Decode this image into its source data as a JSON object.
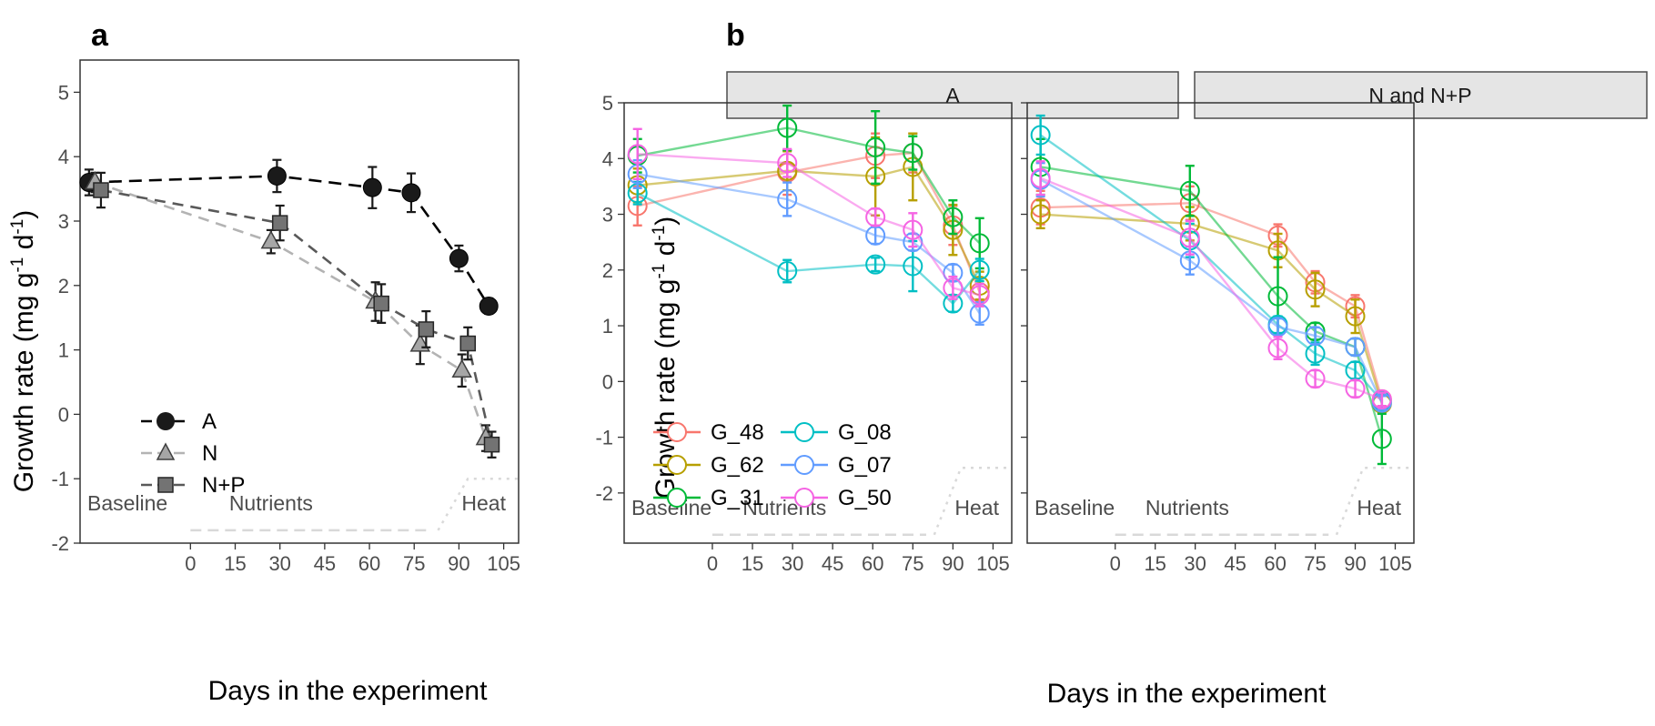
{
  "colors": {
    "series_a": "#000000",
    "series_n": "#a6a6a6",
    "series_np": "#666666",
    "G_48": "#F8766D",
    "G_62": "#B79F00",
    "G_31": "#00BA38",
    "G_08": "#00BFC4",
    "G_07": "#619CFF",
    "G_50": "#F564E3",
    "strip_bg": "#e5e5e5"
  },
  "chart_data": [
    {
      "panel": "a",
      "type": "line",
      "xlabel": "Days in the experiment",
      "ylabel": "Growth rate (mg g-1 d-1)",
      "xticks": [
        0,
        15,
        30,
        45,
        60,
        75,
        90,
        105
      ],
      "yticks": [
        -2,
        -1,
        0,
        1,
        2,
        3,
        4,
        5
      ],
      "ylim": [
        -2,
        5.5
      ],
      "phases": [
        "Baseline",
        "Nutrients",
        "Heat"
      ],
      "legend": {
        "position": "bottom-left"
      },
      "series": [
        {
          "name": "A",
          "marker": "circle",
          "line": "dashed",
          "points": [
            {
              "x": -34,
              "y": 3.6,
              "err": 0.2
            },
            {
              "x": 29,
              "y": 3.7,
              "err": 0.25
            },
            {
              "x": 61,
              "y": 3.52,
              "err": 0.32
            },
            {
              "x": 74,
              "y": 3.44,
              "err": 0.3
            },
            {
              "x": 90,
              "y": 2.42,
              "err": 0.2
            },
            {
              "x": 100,
              "y": 1.68,
              "err": 0.12
            }
          ]
        },
        {
          "name": "N",
          "marker": "triangle",
          "line": "dashed",
          "points": [
            {
              "x": -32,
              "y": 3.6,
              "err": 0.15
            },
            {
              "x": 27,
              "y": 2.68,
              "err": 0.18
            },
            {
              "x": 62,
              "y": 1.75,
              "err": 0.3
            },
            {
              "x": 77,
              "y": 1.08,
              "err": 0.3
            },
            {
              "x": 91,
              "y": 0.68,
              "err": 0.25
            },
            {
              "x": 99,
              "y": -0.37,
              "err": 0.2
            }
          ]
        },
        {
          "name": "N+P",
          "marker": "square",
          "line": "dashed",
          "points": [
            {
              "x": -30,
              "y": 3.48,
              "err": 0.27
            },
            {
              "x": 30,
              "y": 2.97,
              "err": 0.27
            },
            {
              "x": 64,
              "y": 1.72,
              "err": 0.3
            },
            {
              "x": 79,
              "y": 1.32,
              "err": 0.28
            },
            {
              "x": 93,
              "y": 1.1,
              "err": 0.25
            },
            {
              "x": 101,
              "y": -0.47,
              "err": 0.2
            }
          ]
        }
      ]
    },
    {
      "panel": "b",
      "facet": "A",
      "type": "line",
      "xlabel": "Days in the experiment",
      "ylabel": "Growth rate (mg g-1 d-1)",
      "xticks": [
        0,
        15,
        30,
        45,
        60,
        75,
        90,
        105
      ],
      "yticks": [
        -2,
        -1,
        0,
        1,
        2,
        3,
        4,
        5
      ],
      "ylim": [
        -2.9,
        5
      ],
      "phases": [
        "Baseline",
        "Nutrients",
        "Heat"
      ],
      "legend": {
        "position": "bottom-left"
      },
      "series": [
        {
          "name": "G_48",
          "points": [
            {
              "x": -28,
              "y": 3.15,
              "err": 0.35
            },
            {
              "x": 28,
              "y": 3.75,
              "err": 0.4
            },
            {
              "x": 61,
              "y": 4.05,
              "err": 0.4
            },
            {
              "x": 75,
              "y": 4.1,
              "err": 0.35
            },
            {
              "x": 90,
              "y": 2.8,
              "err": 0.35
            },
            {
              "x": 100,
              "y": 1.6,
              "err": 0.25
            }
          ]
        },
        {
          "name": "G_62",
          "points": [
            {
              "x": -28,
              "y": 3.52,
              "err": 0.3
            },
            {
              "x": 28,
              "y": 3.78,
              "err": 0.35
            },
            {
              "x": 61,
              "y": 3.68,
              "err": 0.7
            },
            {
              "x": 75,
              "y": 3.85,
              "err": 0.6
            },
            {
              "x": 90,
              "y": 2.72,
              "err": 0.45
            },
            {
              "x": 100,
              "y": 1.72,
              "err": 0.25
            }
          ]
        },
        {
          "name": "G_31",
          "points": [
            {
              "x": -28,
              "y": 4.05,
              "err": 0.3
            },
            {
              "x": 28,
              "y": 4.55,
              "err": 0.4
            },
            {
              "x": 61,
              "y": 4.2,
              "err": 0.65
            },
            {
              "x": 75,
              "y": 4.1,
              "err": 0.3
            },
            {
              "x": 90,
              "y": 2.95,
              "err": 0.3
            },
            {
              "x": 100,
              "y": 2.48,
              "err": 0.45
            }
          ]
        },
        {
          "name": "G_08",
          "points": [
            {
              "x": -28,
              "y": 3.38,
              "err": 0.2
            },
            {
              "x": 28,
              "y": 1.98,
              "err": 0.2
            },
            {
              "x": 61,
              "y": 2.1,
              "err": 0.12
            },
            {
              "x": 75,
              "y": 2.07,
              "err": 0.45
            },
            {
              "x": 90,
              "y": 1.4,
              "err": 0.15
            },
            {
              "x": 100,
              "y": 2.0,
              "err": 0.2
            }
          ]
        },
        {
          "name": "G_07",
          "points": [
            {
              "x": -28,
              "y": 3.72,
              "err": 0.25
            },
            {
              "x": 28,
              "y": 3.27,
              "err": 0.3
            },
            {
              "x": 61,
              "y": 2.62,
              "err": 0.15
            },
            {
              "x": 75,
              "y": 2.5,
              "err": 0.15
            },
            {
              "x": 90,
              "y": 1.95,
              "err": 0.15
            },
            {
              "x": 100,
              "y": 1.22,
              "err": 0.2
            }
          ]
        },
        {
          "name": "G_50",
          "points": [
            {
              "x": -28,
              "y": 4.08,
              "err": 0.45
            },
            {
              "x": 28,
              "y": 3.92,
              "err": 0.25
            },
            {
              "x": 61,
              "y": 2.95,
              "err": 0.15
            },
            {
              "x": 75,
              "y": 2.72,
              "err": 0.3
            },
            {
              "x": 90,
              "y": 1.68,
              "err": 0.2
            },
            {
              "x": 100,
              "y": 1.55,
              "err": 0.2
            }
          ]
        }
      ]
    },
    {
      "panel": "b",
      "facet": "N and N+P",
      "type": "line",
      "xlabel": "Days in the experiment",
      "xticks": [
        0,
        15,
        30,
        45,
        60,
        75,
        90,
        105
      ],
      "yticks": [
        -2,
        -1,
        0,
        1,
        2,
        3,
        4,
        5
      ],
      "ylim": [
        -2.9,
        5
      ],
      "phases": [
        "Baseline",
        "Nutrients",
        "Heat"
      ],
      "series": [
        {
          "name": "G_48",
          "points": [
            {
              "x": -28,
              "y": 3.12,
              "err": 0.3
            },
            {
              "x": 28,
              "y": 3.2,
              "err": 0.3
            },
            {
              "x": 61,
              "y": 2.62,
              "err": 0.2
            },
            {
              "x": 75,
              "y": 1.78,
              "err": 0.2
            },
            {
              "x": 90,
              "y": 1.35,
              "err": 0.2
            },
            {
              "x": 100,
              "y": -0.32,
              "err": 0.12
            }
          ]
        },
        {
          "name": "G_62",
          "points": [
            {
              "x": -28,
              "y": 3.0,
              "err": 0.25
            },
            {
              "x": 28,
              "y": 2.83,
              "err": 0.3
            },
            {
              "x": 61,
              "y": 2.35,
              "err": 0.3
            },
            {
              "x": 75,
              "y": 1.65,
              "err": 0.3
            },
            {
              "x": 90,
              "y": 1.17,
              "err": 0.3
            },
            {
              "x": 100,
              "y": -0.4,
              "err": 0.15
            }
          ]
        },
        {
          "name": "G_31",
          "points": [
            {
              "x": -28,
              "y": 3.85,
              "err": 0.5
            },
            {
              "x": 28,
              "y": 3.42,
              "err": 0.45
            },
            {
              "x": 61,
              "y": 1.53,
              "err": 0.7
            },
            {
              "x": 75,
              "y": 0.9,
              "err": 0.15
            },
            {
              "x": 90,
              "y": 0.62,
              "err": 0.15
            },
            {
              "x": 100,
              "y": -1.03,
              "err": 0.45
            }
          ]
        },
        {
          "name": "G_08",
          "points": [
            {
              "x": -28,
              "y": 4.42,
              "err": 0.35
            },
            {
              "x": 28,
              "y": 2.53,
              "err": 0.3
            },
            {
              "x": 61,
              "y": 1.02,
              "err": 0.15
            },
            {
              "x": 75,
              "y": 0.5,
              "err": 0.2
            },
            {
              "x": 90,
              "y": 0.2,
              "err": 0.15
            },
            {
              "x": 100,
              "y": -0.35,
              "err": 0.15
            }
          ]
        },
        {
          "name": "G_07",
          "points": [
            {
              "x": -28,
              "y": 3.62,
              "err": 0.3
            },
            {
              "x": 28,
              "y": 2.17,
              "err": 0.25
            },
            {
              "x": 61,
              "y": 0.98,
              "err": 0.15
            },
            {
              "x": 75,
              "y": 0.82,
              "err": 0.15
            },
            {
              "x": 90,
              "y": 0.62,
              "err": 0.15
            },
            {
              "x": 100,
              "y": -0.38,
              "err": 0.12
            }
          ]
        },
        {
          "name": "G_50",
          "points": [
            {
              "x": -28,
              "y": 3.65,
              "err": 0.3
            },
            {
              "x": 28,
              "y": 2.58,
              "err": 0.3
            },
            {
              "x": 61,
              "y": 0.6,
              "err": 0.2
            },
            {
              "x": 75,
              "y": 0.05,
              "err": 0.15
            },
            {
              "x": 90,
              "y": -0.13,
              "err": 0.15
            },
            {
              "x": 100,
              "y": -0.32,
              "err": 0.12
            }
          ]
        }
      ]
    }
  ],
  "labels": {
    "panel_a": "a",
    "panel_b": "b",
    "xlabel_a": "Days in the experiment",
    "xlabel_b": "Days in the experiment",
    "ylabel_prefix": "Growth rate (mg g",
    "ylabel_sup1": "-1",
    "ylabel_mid": " d",
    "ylabel_sup2": "-1",
    "ylabel_suffix": ")",
    "strip_left": "A",
    "strip_right": "N and N+P"
  }
}
